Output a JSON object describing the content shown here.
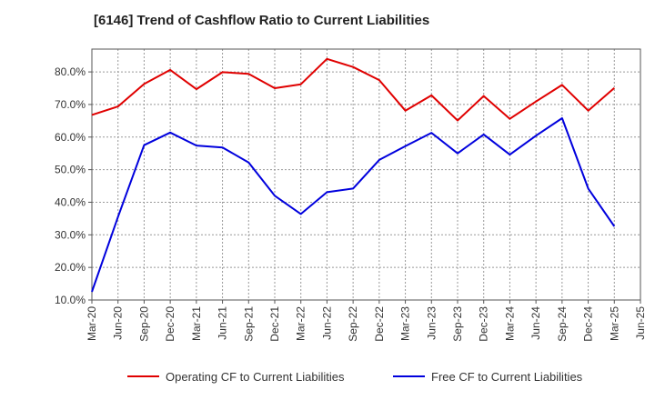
{
  "chart_data": {
    "type": "line",
    "title": "[6146]  Trend of Cashflow Ratio to Current Liabilities",
    "categories": [
      "Mar-20",
      "Jun-20",
      "Sep-20",
      "Dec-20",
      "Mar-21",
      "Jun-21",
      "Sep-21",
      "Dec-21",
      "Mar-22",
      "Jun-22",
      "Sep-22",
      "Dec-22",
      "Mar-23",
      "Jun-23",
      "Sep-23",
      "Dec-23",
      "Mar-24",
      "Jun-24",
      "Sep-24",
      "Dec-24",
      "Mar-25",
      "Jun-25"
    ],
    "y_ticks": [
      "10.0%",
      "20.0%",
      "30.0%",
      "40.0%",
      "50.0%",
      "60.0%",
      "70.0%",
      "80.0%"
    ],
    "ylim": [
      10,
      87
    ],
    "grid": true,
    "legend_position": "bottom",
    "series": [
      {
        "name": "Operating CF to Current Liabilities",
        "color": "#e00000",
        "values": [
          66.8,
          69.4,
          76.3,
          80.6,
          74.7,
          79.9,
          79.4,
          75.0,
          76.2,
          84.0,
          81.5,
          77.5,
          68.1,
          72.8,
          65.1,
          72.6,
          65.6,
          70.9,
          76.0,
          68.1,
          75.1,
          null
        ]
      },
      {
        "name": "Free CF to Current Liabilities",
        "color": "#0000dd",
        "values": [
          12.5,
          35.5,
          57.5,
          61.4,
          57.4,
          56.8,
          52.2,
          42.0,
          36.4,
          43.1,
          44.2,
          53.0,
          57.2,
          61.3,
          55.0,
          60.8,
          54.6,
          60.4,
          65.8,
          44.2,
          32.6,
          null
        ]
      }
    ]
  }
}
